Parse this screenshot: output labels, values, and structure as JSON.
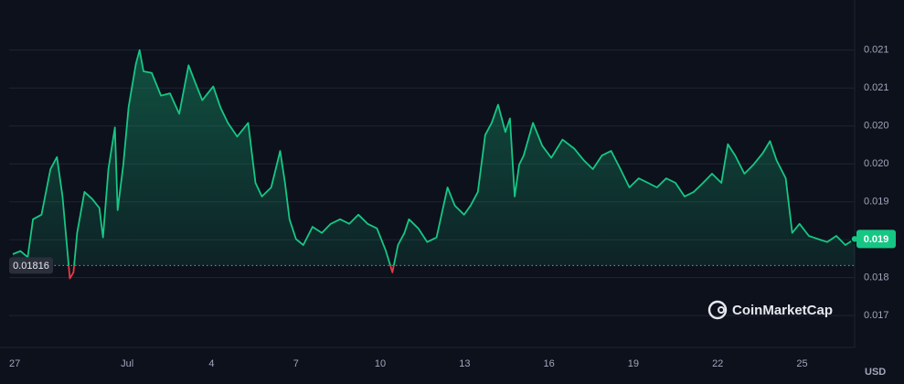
{
  "chart_data": {
    "type": "line",
    "x": [
      -0.07,
      0.2,
      0.46,
      0.65,
      0.95,
      1.27,
      1.5,
      1.7,
      1.83,
      1.96,
      2.09,
      2.22,
      2.48,
      2.75,
      3.01,
      3.14,
      3.33,
      3.56,
      3.66,
      3.86,
      4.05,
      4.31,
      4.44,
      4.58,
      4.87,
      5.2,
      5.52,
      5.85,
      6.18,
      6.41,
      6.67,
      7.06,
      7.32,
      7.58,
      7.91,
      8.3,
      8.56,
      8.79,
      9.12,
      9.44,
      9.61,
      9.77,
      10.0,
      10.26,
      10.59,
      10.92,
      11.24,
      11.57,
      11.9,
      12.22,
      12.55,
      12.88,
      13.2,
      13.43,
      13.63,
      13.86,
      14.02,
      14.35,
      14.67,
      15.0,
      15.39,
      15.65,
      15.98,
      16.21,
      16.47,
      16.73,
      16.96,
      17.19,
      17.45,
      17.61,
      17.78,
      17.94,
      18.1,
      18.43,
      18.76,
      19.08,
      19.48,
      19.9,
      20.23,
      20.56,
      20.88,
      21.21,
      21.54,
      21.86,
      22.19,
      22.52,
      22.84,
      23.17,
      23.5,
      23.82,
      24.15,
      24.48,
      24.8,
      25.13,
      25.36,
      25.62,
      25.95,
      26.27,
      26.6,
      26.86,
      27.09,
      27.42,
      27.65,
      27.91,
      28.24,
      28.56,
      28.89,
      29.22,
      29.54,
      29.87
    ],
    "values": [
      0.01831,
      0.01835,
      0.01827,
      0.01877,
      0.01883,
      0.01943,
      0.01959,
      0.01907,
      0.01853,
      0.01799,
      0.01807,
      0.01859,
      0.01913,
      0.01904,
      0.01892,
      0.01853,
      0.01943,
      0.01998,
      0.01889,
      0.01949,
      0.02025,
      0.02082,
      0.021,
      0.02072,
      0.0207,
      0.0204,
      0.02043,
      0.02016,
      0.0208,
      0.02058,
      0.02034,
      0.02052,
      0.02024,
      0.02004,
      0.01986,
      0.02004,
      0.01925,
      0.01907,
      0.01919,
      0.01967,
      0.01925,
      0.01877,
      0.01851,
      0.01843,
      0.01867,
      0.01859,
      0.01871,
      0.01877,
      0.01871,
      0.01883,
      0.01871,
      0.01865,
      0.01835,
      0.01807,
      0.01843,
      0.01859,
      0.01877,
      0.01865,
      0.01847,
      0.01853,
      0.01919,
      0.01895,
      0.01883,
      0.01895,
      0.01913,
      0.01988,
      0.02004,
      0.02028,
      0.01992,
      0.0201,
      0.01907,
      0.01949,
      0.01961,
      0.02004,
      0.01974,
      0.01958,
      0.01982,
      0.0197,
      0.01955,
      0.01943,
      0.01961,
      0.01967,
      0.01943,
      0.01919,
      0.01931,
      0.01925,
      0.01919,
      0.01931,
      0.01925,
      0.01907,
      0.01913,
      0.01925,
      0.01937,
      0.01925,
      0.01976,
      0.01961,
      0.01937,
      0.01949,
      0.01964,
      0.0198,
      0.01955,
      0.01931,
      0.01859,
      0.01871,
      0.01855,
      0.01851,
      0.01847,
      0.01855,
      0.01843,
      0.01851
    ],
    "color": "#16c784",
    "below_color": "#ea3943",
    "baseline": 0.01816,
    "baseline_label": "0.01816",
    "current_price_label": "0.019",
    "currency": "USD",
    "watermark": "CoinMarketCap",
    "xlim": [
      -0.2,
      29.87
    ],
    "ylim": [
      0.01708,
      0.02154
    ],
    "xticks": [
      {
        "value": 0,
        "label": "27"
      },
      {
        "value": 4,
        "label": "Jul"
      },
      {
        "value": 7,
        "label": "4"
      },
      {
        "value": 10,
        "label": "7"
      },
      {
        "value": 13,
        "label": "10"
      },
      {
        "value": 16,
        "label": "13"
      },
      {
        "value": 19,
        "label": "16"
      },
      {
        "value": 22,
        "label": "19"
      },
      {
        "value": 25,
        "label": "22"
      },
      {
        "value": 28,
        "label": "25"
      }
    ],
    "yticks": [
      {
        "value": 0.0175,
        "label": "0.017"
      },
      {
        "value": 0.018,
        "label": "0.018"
      },
      {
        "value": 0.0185,
        "label": "0.019"
      },
      {
        "value": 0.019,
        "label": "0.019"
      },
      {
        "value": 0.0195,
        "label": "0.020"
      },
      {
        "value": 0.02,
        "label": "0.020"
      },
      {
        "value": 0.0205,
        "label": "0.021"
      },
      {
        "value": 0.021,
        "label": "0.021"
      }
    ],
    "grid": true
  }
}
